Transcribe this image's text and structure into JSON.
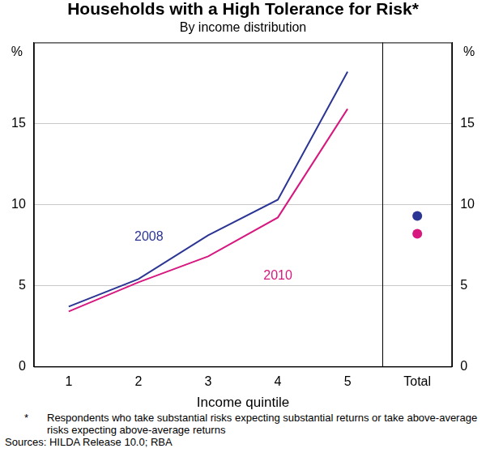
{
  "chart_data": {
    "type": "line",
    "title": "Households with a High Tolerance for Risk*",
    "subtitle": "By income distribution",
    "x_label": "Income quintile",
    "y_label": "%",
    "y2_label": "%",
    "categories": [
      "1",
      "2",
      "3",
      "4",
      "5",
      "Total"
    ],
    "series": [
      {
        "name": "2008",
        "color": "#2b3594",
        "values": [
          3.7,
          5.4,
          8.1,
          10.3,
          18.2,
          null
        ]
      },
      {
        "name": "2010",
        "color": "#d6187f",
        "values": [
          3.4,
          5.2,
          6.8,
          9.2,
          15.9,
          null
        ]
      },
      {
        "type": "scatter",
        "marker": "circle",
        "color": "#2b3594",
        "values": [
          null,
          null,
          null,
          null,
          null,
          9.3
        ]
      },
      {
        "type": "scatter",
        "marker": "circle",
        "color": "#d6187f",
        "values": [
          null,
          null,
          null,
          null,
          null,
          8.2
        ]
      }
    ],
    "ylim": [
      0,
      20
    ],
    "yticks": [
      0,
      5,
      10,
      15
    ],
    "y2lim": [
      0,
      20
    ],
    "y2ticks": [
      0,
      5,
      10,
      15
    ],
    "grid": true,
    "notes": [
      {
        "mark": "*",
        "text": "Respondents who take substantial risks expecting substantial returns or take above-average risks expecting above-average returns"
      },
      {
        "text": "Sources: HILDA Release 10.0; RBA"
      }
    ]
  }
}
